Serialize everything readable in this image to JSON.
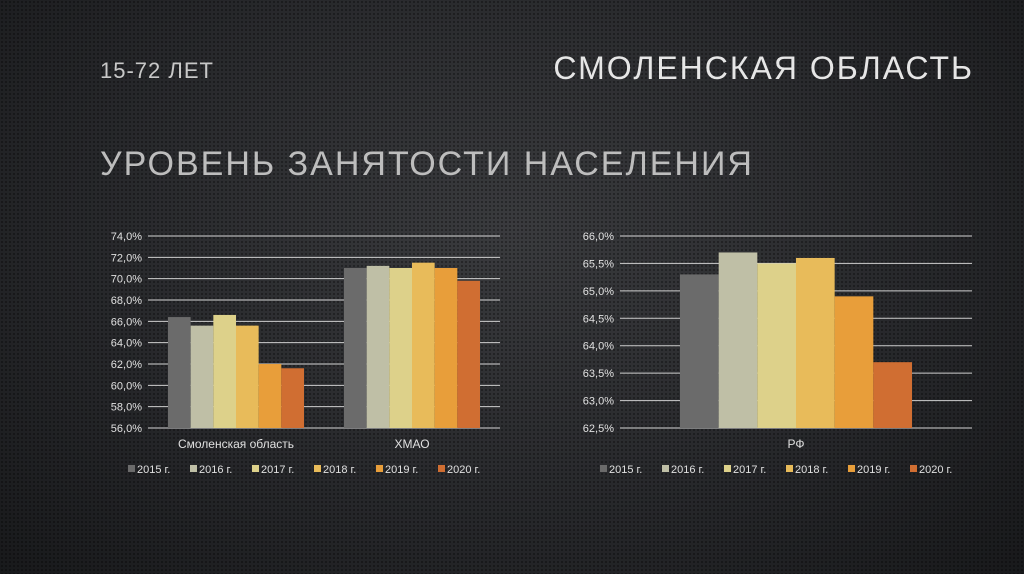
{
  "header": {
    "age": "15-72 ЛЕТ",
    "region": "СМОЛЕНСКАЯ ОБЛАСТЬ",
    "title": "УРОВЕНЬ ЗАНЯТОСТИ НАСЕЛЕНИЯ"
  },
  "colors": [
    "#6b6b6b",
    "#bfbfa6",
    "#ddd18a",
    "#e8bb5a",
    "#e89e3a",
    "#d06e32"
  ],
  "chart_data": [
    {
      "type": "bar",
      "categories": [
        "Смоленская область",
        "ХМАО"
      ],
      "ylim": [
        56,
        74
      ],
      "yticks": [
        "56,0%",
        "58,0%",
        "60,0%",
        "62,0%",
        "64,0%",
        "66,0%",
        "68,0%",
        "70,0%",
        "72,0%",
        "74,0%"
      ],
      "ystep": 2,
      "legend": "bottom",
      "series": [
        {
          "name": "2015 г.",
          "values": [
            66.4,
            71.0
          ]
        },
        {
          "name": "2016 г.",
          "values": [
            65.6,
            71.2
          ]
        },
        {
          "name": "2017 г.",
          "values": [
            66.6,
            71.0
          ]
        },
        {
          "name": "2018 г.",
          "values": [
            65.6,
            71.5
          ]
        },
        {
          "name": "2019 г.",
          "values": [
            62.0,
            71.0
          ]
        },
        {
          "name": "2020 г.",
          "values": [
            61.6,
            69.8
          ]
        }
      ]
    },
    {
      "type": "bar",
      "categories": [
        "РФ"
      ],
      "ylim": [
        62.5,
        66
      ],
      "yticks": [
        "62,5%",
        "63,0%",
        "63,5%",
        "64,0%",
        "64,5%",
        "65,0%",
        "65,5%",
        "66,0%"
      ],
      "ystep": 0.5,
      "legend": "bottom",
      "series": [
        {
          "name": "2015 г.",
          "values": [
            65.3
          ]
        },
        {
          "name": "2016 г.",
          "values": [
            65.7
          ]
        },
        {
          "name": "2017 г.",
          "values": [
            65.5
          ]
        },
        {
          "name": "2018 г.",
          "values": [
            65.6
          ]
        },
        {
          "name": "2019 г.",
          "values": [
            64.9
          ]
        },
        {
          "name": "2020 г.",
          "values": [
            63.7
          ]
        }
      ]
    }
  ]
}
